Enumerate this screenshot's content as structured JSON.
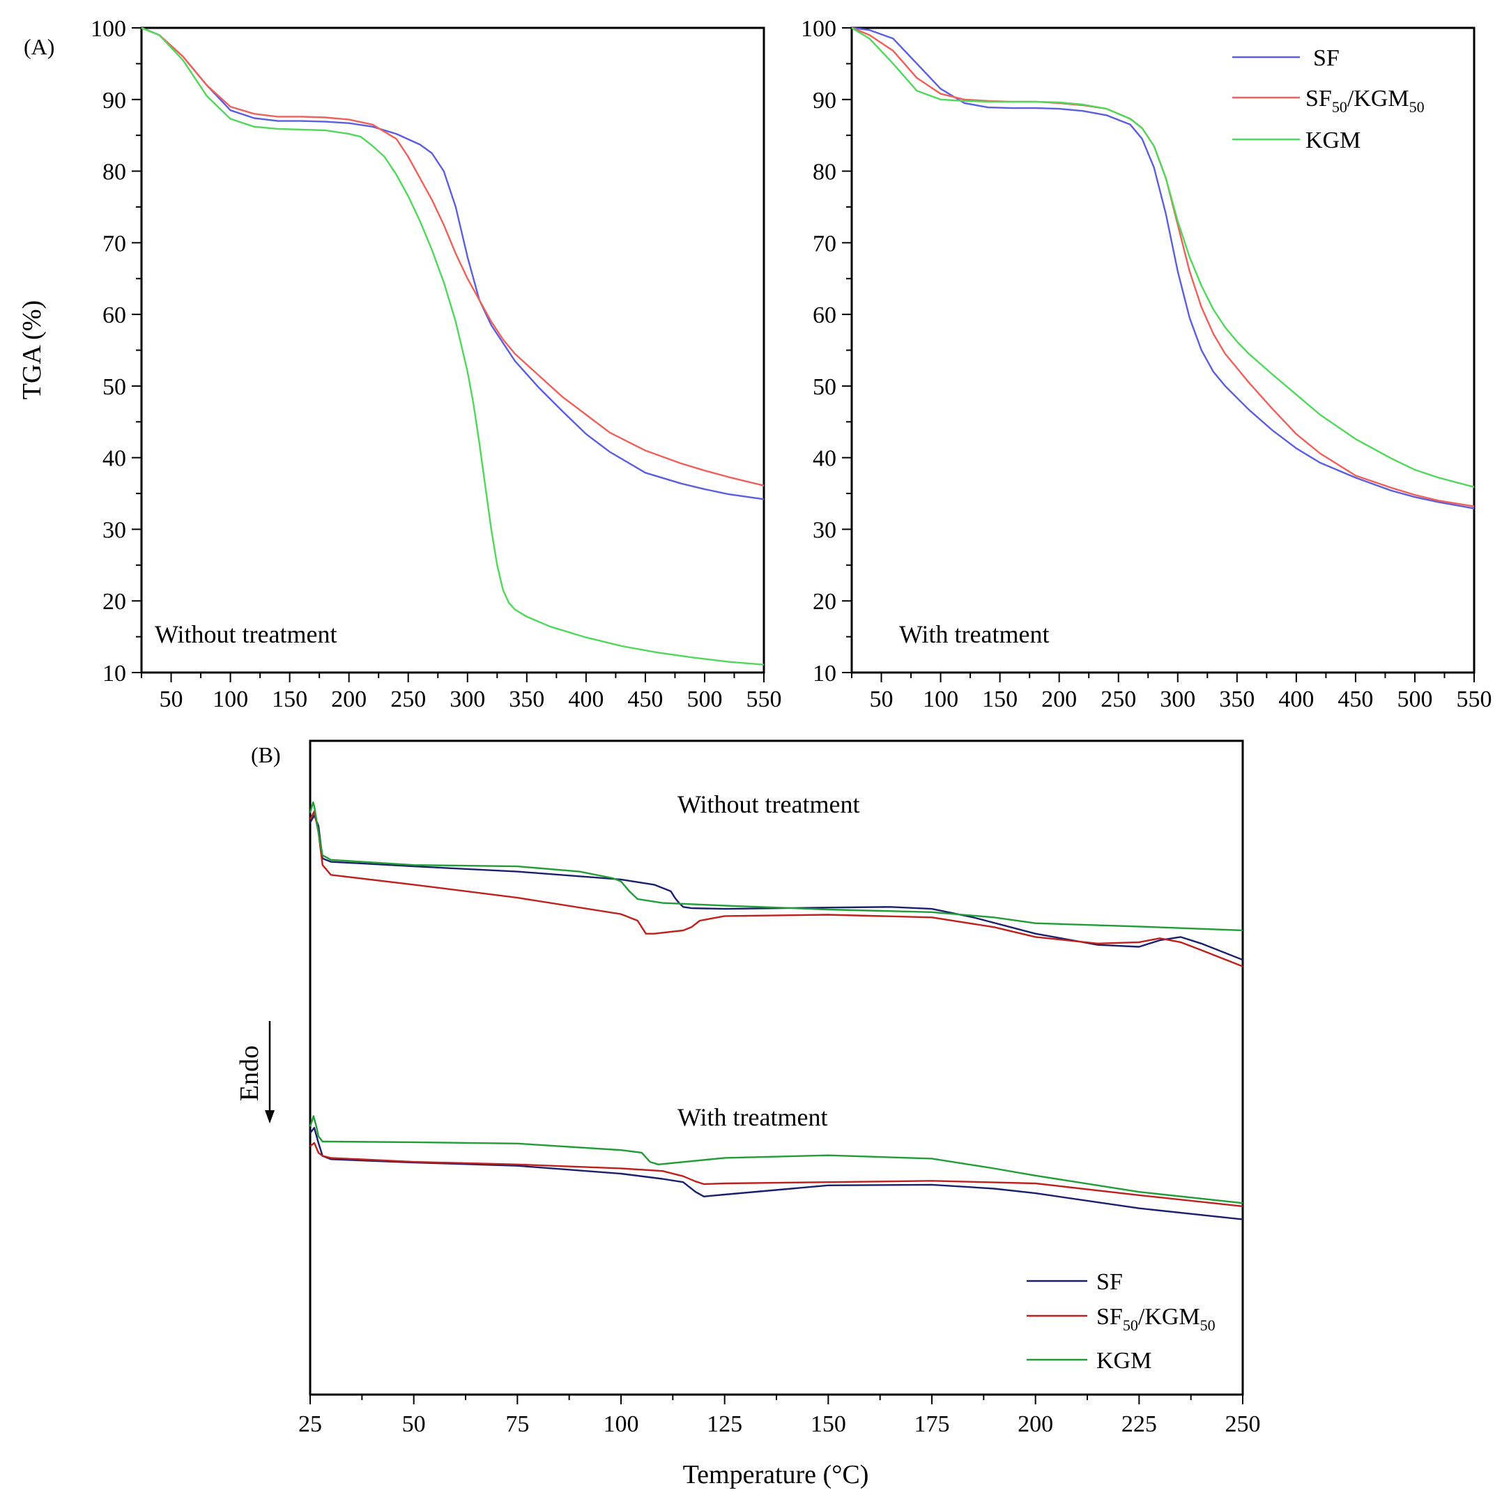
{
  "colors": {
    "tga_SF": "#5a5ee0",
    "tga_SF50KGM50": "#f0605a",
    "tga_KGM": "#4fd85a",
    "dsc_SF": "#1a1f6e",
    "dsc_SF50KGM50": "#c0201c",
    "dsc_KGM": "#1f9e35"
  },
  "panel_labels": {
    "a": "(A)",
    "b": "(B)"
  },
  "legend_A": {
    "sf": "SF",
    "blend_main1": "SF",
    "blend_sub1": "50",
    "blend_main2": "/KGM",
    "blend_sub2": "50",
    "kgm": "KGM"
  },
  "legend_B": {
    "sf": "SF",
    "blend_main1": "SF",
    "blend_sub1": "50",
    "blend_main2": "/KGM",
    "blend_sub2": "50",
    "kgm": "KGM"
  },
  "dsc_arrow_label": "Endo",
  "chart_data": [
    {
      "id": "tga_without",
      "type": "line",
      "title": "",
      "annotation": "Without treatment",
      "xlabel": "",
      "ylabel": "TGA (%)",
      "xlim": [
        25,
        550
      ],
      "ylim": [
        10,
        100
      ],
      "xticks": [
        50,
        100,
        150,
        200,
        250,
        300,
        350,
        400,
        450,
        500,
        550
      ],
      "yticks": [
        10,
        20,
        30,
        40,
        50,
        60,
        70,
        80,
        90,
        100
      ],
      "series": [
        {
          "name": "SF",
          "x": [
            25,
            40,
            60,
            80,
            100,
            120,
            140,
            160,
            180,
            200,
            220,
            240,
            260,
            270,
            280,
            290,
            300,
            310,
            320,
            330,
            340,
            360,
            380,
            400,
            420,
            450,
            480,
            500,
            520,
            550
          ],
          "y": [
            100,
            99,
            96,
            92,
            88.5,
            87.4,
            87,
            87,
            86.9,
            86.7,
            86.2,
            85.2,
            83.7,
            82.5,
            80,
            75,
            68,
            62,
            58.5,
            56,
            53.5,
            49.8,
            46.5,
            43.3,
            40.8,
            37.9,
            36.4,
            35.6,
            34.9,
            34.2
          ]
        },
        {
          "name": "SF50/KGM50",
          "x": [
            25,
            40,
            60,
            80,
            100,
            120,
            140,
            160,
            180,
            200,
            220,
            240,
            250,
            260,
            270,
            280,
            290,
            300,
            310,
            320,
            330,
            340,
            360,
            380,
            400,
            420,
            450,
            480,
            500,
            520,
            550
          ],
          "y": [
            100,
            99,
            96,
            92,
            89,
            88,
            87.6,
            87.6,
            87.5,
            87.2,
            86.5,
            84.5,
            82,
            79,
            76,
            72.5,
            68.5,
            65,
            62,
            59,
            56.5,
            54.5,
            51.5,
            48.5,
            46,
            43.5,
            41,
            39.2,
            38.2,
            37.3,
            36.1
          ]
        },
        {
          "name": "KGM",
          "x": [
            25,
            40,
            60,
            80,
            100,
            120,
            140,
            160,
            180,
            200,
            210,
            220,
            230,
            240,
            250,
            260,
            270,
            280,
            290,
            300,
            305,
            310,
            315,
            320,
            325,
            330,
            335,
            340,
            350,
            370,
            400,
            430,
            460,
            490,
            520,
            550
          ],
          "y": [
            100,
            99,
            95.5,
            90.5,
            87.3,
            86.2,
            85.9,
            85.8,
            85.7,
            85.2,
            84.8,
            83.5,
            82,
            79.5,
            76.5,
            73,
            69,
            64.5,
            59,
            52,
            47.5,
            42,
            36,
            30,
            25,
            21.5,
            19.7,
            18.8,
            17.8,
            16.4,
            14.9,
            13.7,
            12.8,
            12.1,
            11.5,
            11.1
          ]
        }
      ]
    },
    {
      "id": "tga_with",
      "type": "line",
      "title": "",
      "annotation": "With treatment",
      "xlabel": "",
      "ylabel": "",
      "xlim": [
        25,
        550
      ],
      "ylim": [
        10,
        100
      ],
      "xticks": [
        50,
        100,
        150,
        200,
        250,
        300,
        350,
        400,
        450,
        500,
        550
      ],
      "yticks": [
        10,
        20,
        30,
        40,
        50,
        60,
        70,
        80,
        90,
        100
      ],
      "legend": "top-right",
      "series": [
        {
          "name": "SF",
          "x": [
            25,
            40,
            60,
            80,
            100,
            120,
            140,
            160,
            180,
            200,
            220,
            240,
            260,
            270,
            280,
            290,
            300,
            310,
            320,
            330,
            340,
            360,
            380,
            400,
            420,
            450,
            480,
            500,
            520,
            550
          ],
          "y": [
            100,
            99.7,
            98.5,
            95,
            91.5,
            89.5,
            88.9,
            88.8,
            88.8,
            88.7,
            88.4,
            87.8,
            86.5,
            84.5,
            80.5,
            74,
            66,
            59.5,
            55,
            52,
            50,
            46.7,
            43.8,
            41.3,
            39.3,
            37.2,
            35.4,
            34.5,
            33.8,
            32.9
          ]
        },
        {
          "name": "SF50/KGM50",
          "x": [
            25,
            40,
            60,
            80,
            100,
            120,
            140,
            160,
            180,
            200,
            220,
            240,
            260,
            270,
            280,
            290,
            300,
            310,
            320,
            330,
            340,
            360,
            380,
            400,
            420,
            450,
            480,
            500,
            520,
            550
          ],
          "y": [
            100,
            99,
            96.8,
            93,
            90.8,
            90,
            89.8,
            89.7,
            89.7,
            89.5,
            89.2,
            88.7,
            87.3,
            86,
            83.5,
            79,
            72.5,
            66,
            61,
            57.3,
            54.5,
            50.5,
            46.8,
            43.3,
            40.6,
            37.5,
            35.8,
            34.8,
            34,
            33.2
          ]
        },
        {
          "name": "KGM",
          "x": [
            25,
            40,
            60,
            80,
            100,
            120,
            140,
            160,
            180,
            200,
            220,
            240,
            260,
            270,
            280,
            290,
            300,
            310,
            320,
            330,
            340,
            350,
            360,
            380,
            400,
            420,
            450,
            480,
            500,
            520,
            550
          ],
          "y": [
            100,
            98.5,
            95,
            91.2,
            90,
            89.8,
            89.7,
            89.7,
            89.7,
            89.6,
            89.3,
            88.7,
            87.3,
            86,
            83.5,
            79,
            73,
            68,
            64,
            60.7,
            58.2,
            56.2,
            54.5,
            51.6,
            48.8,
            46,
            42.6,
            39.9,
            38.3,
            37.2,
            35.9
          ]
        }
      ]
    },
    {
      "id": "dsc",
      "type": "line",
      "title": "",
      "annotations": [
        "Without treatment",
        "With treatment"
      ],
      "xlabel": "Temperature (°C)",
      "ylabel": "",
      "xlim": [
        25,
        250
      ],
      "ylim": [
        0,
        100
      ],
      "xticks": [
        25,
        50,
        75,
        100,
        125,
        150,
        175,
        200,
        225,
        250
      ],
      "yticks": [],
      "legend": "bottom-right",
      "series": [
        {
          "name": "SF",
          "x": [
            25,
            26,
            27,
            28,
            30,
            50,
            75,
            100,
            108,
            112,
            113,
            114,
            115,
            117,
            125,
            150,
            165,
            175,
            185,
            200,
            215,
            225,
            230,
            235,
            240,
            250
          ],
          "y": [
            87.5,
            88.6,
            87,
            82,
            81.5,
            80.8,
            80,
            78.8,
            78,
            77,
            76,
            75.2,
            74.6,
            74.4,
            74.3,
            74.5,
            74.6,
            74.3,
            73,
            70.5,
            68.8,
            68.5,
            69.5,
            70,
            69,
            66.5
          ]
        },
        {
          "name": "SF50/KGM50",
          "x": [
            25,
            26,
            27,
            28,
            30,
            50,
            75,
            100,
            104,
            106,
            108,
            115,
            117,
            119,
            125,
            150,
            175,
            190,
            200,
            215,
            225,
            230,
            235,
            240,
            250
          ],
          "y": [
            88,
            89.2,
            86,
            81,
            79.5,
            78,
            76,
            73.5,
            72.5,
            70.5,
            70.5,
            71,
            71.5,
            72.5,
            73.2,
            73.4,
            73,
            71.5,
            70,
            69,
            69.2,
            69.8,
            69.2,
            68,
            65.5
          ]
        },
        {
          "name": "KGM",
          "x": [
            25,
            25.7,
            26,
            27,
            28,
            30,
            50,
            75,
            90,
            98,
            100,
            102,
            104,
            110,
            125,
            150,
            175,
            190,
            200,
            225,
            250
          ],
          "y": [
            89,
            90.6,
            90,
            86,
            82.5,
            81.8,
            81,
            80.8,
            80,
            79,
            78.5,
            77,
            75.8,
            75.2,
            74.8,
            74.2,
            73.8,
            73,
            72.1,
            71.6,
            71
          ]
        },
        {
          "name": "SF",
          "x": [
            25,
            26,
            27,
            28,
            30,
            50,
            75,
            100,
            110,
            115,
            118,
            120,
            125,
            150,
            175,
            190,
            200,
            225,
            250
          ],
          "y": [
            40,
            40.8,
            38.5,
            36.5,
            36,
            35.5,
            35,
            33.8,
            33,
            32.5,
            31,
            30.3,
            30.6,
            32,
            32.1,
            31.5,
            30.8,
            28.5,
            26.8
          ]
        },
        {
          "name": "SF50/KGM50",
          "x": [
            25,
            26,
            27,
            28,
            30,
            50,
            75,
            100,
            110,
            115,
            118,
            120,
            125,
            150,
            175,
            200,
            225,
            250
          ],
          "y": [
            38,
            38.5,
            37,
            36.5,
            36.2,
            35.6,
            35.2,
            34.6,
            34.2,
            33.4,
            32.6,
            32.2,
            32.3,
            32.5,
            32.7,
            32.3,
            30.5,
            28.8
          ]
        },
        {
          "name": "KGM",
          "x": [
            25,
            25.8,
            26.5,
            27,
            28,
            30,
            50,
            75,
            100,
            105,
            107,
            109,
            125,
            150,
            175,
            190,
            200,
            225,
            250
          ],
          "y": [
            41,
            42.6,
            41,
            39.5,
            38.7,
            38.7,
            38.6,
            38.4,
            37.4,
            37,
            35.6,
            35.2,
            36.2,
            36.6,
            36.1,
            34.6,
            33.5,
            31,
            29.3
          ]
        }
      ]
    }
  ]
}
